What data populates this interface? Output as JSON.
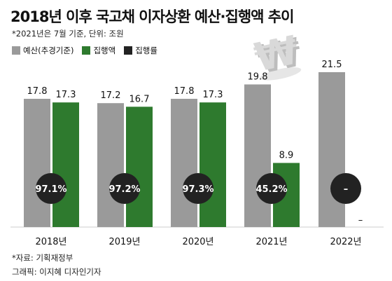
{
  "title": "2018년 이후 국고채 이자상환 예산·집행액 추이",
  "note": "*2021년은 7월 기준, 단위: 조원",
  "source": "*자료: 기획재정부",
  "credit": "그래픽: 이지혜 디자인기자",
  "colors": {
    "budget": "#9a9a9a",
    "executed": "#2e7a2e",
    "rate": "#222222",
    "baseline": "#cccccc"
  },
  "decoration": "won-symbol-3d",
  "chart_data": {
    "type": "bar",
    "categories": [
      "2018년",
      "2019년",
      "2020년",
      "2021년",
      "2022년"
    ],
    "series": [
      {
        "name": "예산(추경기준)",
        "values": [
          17.8,
          17.2,
          17.8,
          19.8,
          21.5
        ],
        "labels": [
          "17.8",
          "17.2",
          "17.8",
          "19.8",
          "21.5"
        ]
      },
      {
        "name": "집행액",
        "values": [
          17.3,
          16.7,
          17.3,
          8.9,
          null
        ],
        "labels": [
          "17.3",
          "16.7",
          "17.3",
          "8.9",
          "–"
        ]
      },
      {
        "name": "집행률",
        "values": [
          97.1,
          97.2,
          97.3,
          45.2,
          null
        ],
        "labels": [
          "97.1%",
          "97.2%",
          "97.3%",
          "45.2%",
          "–"
        ]
      }
    ],
    "ylim": [
      0,
      21.5
    ],
    "grid": false,
    "legend": "top-left"
  }
}
